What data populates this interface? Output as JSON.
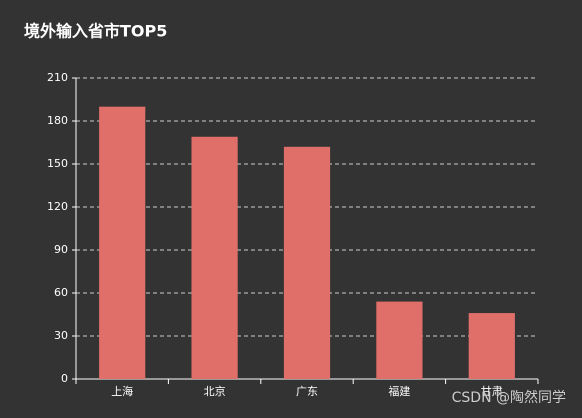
{
  "chart_data": {
    "type": "bar",
    "title": "境外输入省市TOP5",
    "categories": [
      "上海",
      "北京",
      "广东",
      "福建",
      "甘肃"
    ],
    "values": [
      190,
      169,
      162,
      54,
      46
    ],
    "color": "#e06f69",
    "ylim": [
      0,
      210
    ],
    "yticks": [
      0,
      30,
      60,
      90,
      120,
      150,
      180,
      210
    ],
    "grid": true
  },
  "watermark": "CSDN @陶然同学"
}
